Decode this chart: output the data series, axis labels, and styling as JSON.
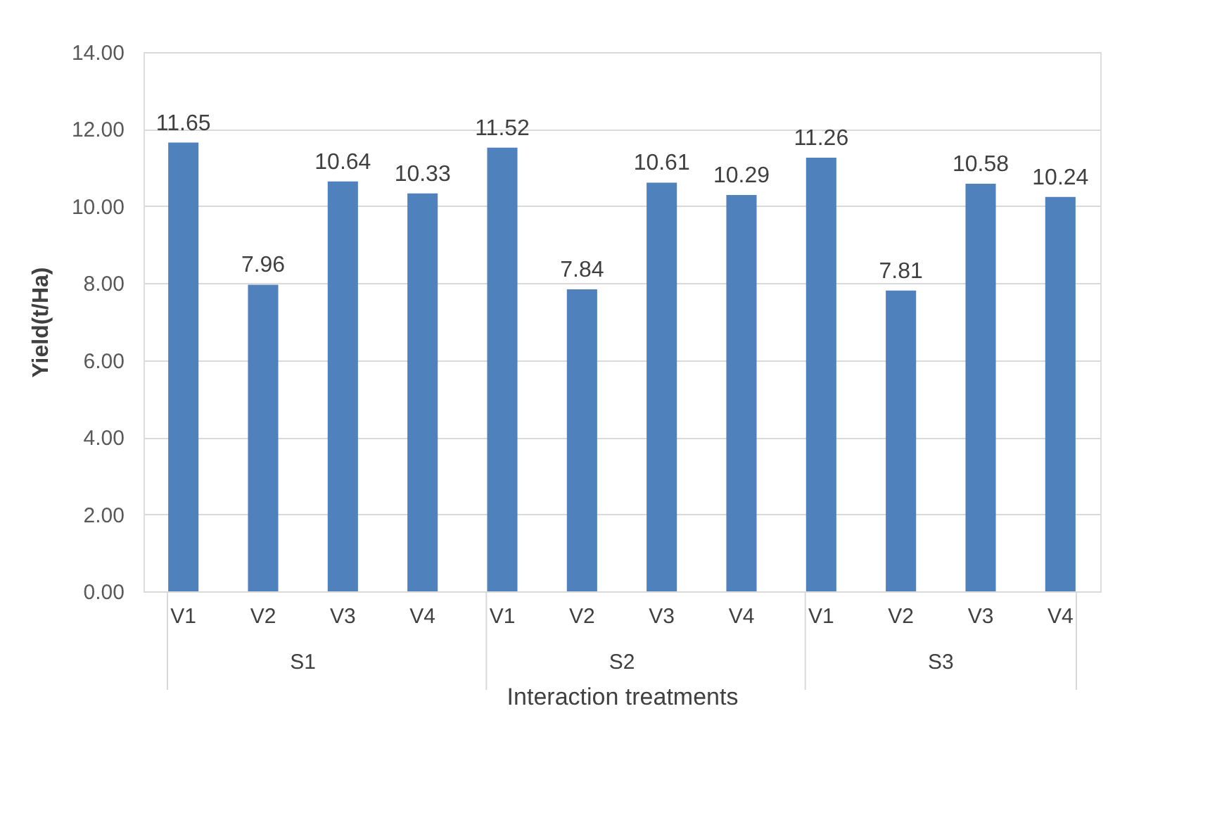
{
  "chart_data": {
    "type": "bar",
    "xlabel": "Interaction treatments",
    "ylabel": "Yield(t/Ha)",
    "categories": [
      "V1",
      "V2",
      "V3",
      "V4",
      "V1",
      "V2",
      "V3",
      "V4",
      "V1",
      "V2",
      "V3",
      "V4"
    ],
    "annotations": [
      "S1",
      "S2",
      "S3"
    ],
    "series": [
      {
        "color": "#4f81bd",
        "values": [
          11.65,
          7.96,
          10.64,
          10.33,
          11.52,
          7.84,
          10.61,
          10.29,
          11.26,
          7.81,
          10.58,
          10.24
        ]
      }
    ],
    "ylim": [
      0,
      14
    ],
    "yticks": [
      {
        "value": 0,
        "label": "0.00"
      },
      {
        "value": 2,
        "label": "2.00"
      },
      {
        "value": 4,
        "label": "4.00"
      },
      {
        "value": 6,
        "label": "6.00"
      },
      {
        "value": 8,
        "label": "8.00"
      },
      {
        "value": 10,
        "label": "10.00"
      },
      {
        "value": 12,
        "label": "12.00"
      },
      {
        "value": 14,
        "label": "14.00"
      }
    ],
    "grid": "y",
    "data_labels": true
  }
}
